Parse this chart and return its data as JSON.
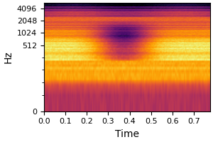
{
  "title": "",
  "xlabel": "Time",
  "ylabel": "Hz",
  "x_min": 0.0,
  "x_max": 0.775,
  "y_min": 0,
  "y_max": 5512,
  "yticks": [
    0,
    512,
    1024,
    2048,
    4096
  ],
  "ytick_labels": [
    "0",
    "512",
    "1024",
    "2048",
    "4096"
  ],
  "xticks": [
    0.0,
    0.1,
    0.2,
    0.3,
    0.4,
    0.5,
    0.6,
    0.7
  ],
  "colormap": "inferno",
  "n_time": 150,
  "n_freq": 256,
  "y_max_freq": 5512,
  "seed": 42
}
